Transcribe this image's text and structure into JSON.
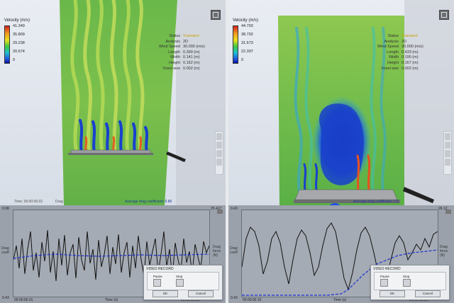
{
  "left": {
    "legend": {
      "title": "Velocity (m/s)",
      "values": [
        "41.349",
        "35.809",
        "29.238",
        "20.674",
        "0"
      ]
    },
    "info": [
      {
        "k": "Status",
        "v": "Transient"
      },
      {
        "k": "Analysis",
        "v": "2D"
      },
      {
        "k": "Wind Speed",
        "v": "30.000 (m/s)"
      },
      {
        "k": "Length",
        "v": "0.399 (m)"
      },
      {
        "k": "Width",
        "v": "0.141 (m)"
      },
      {
        "k": "Height",
        "v": "0.162 (m)"
      },
      {
        "k": "Voxel size",
        "v": "0.002 (m)"
      }
    ],
    "time_top": "Time: 00:00:00.02",
    "drag_label": "Drag",
    "avg_drag": "Average drag coefficient: 0.86",
    "plot": {
      "ylabel_left": "Drag coeff",
      "ylabel_right": "Drag force (N)",
      "y_max_left": "0.98",
      "y_min_left": "0.43",
      "y_max_right": "25.417",
      "y_min_right": "0",
      "x_start": "00:00:00.01",
      "x_mid": "Time (s)",
      "x_end": "00:00:00.02"
    },
    "dialog": {
      "title": "VIDEO RECORD",
      "pause": "Pause",
      "stop": "Stop",
      "ok": "OK",
      "cancel": "Cancel"
    }
  },
  "right": {
    "legend": {
      "title": "Velocity (m/s)",
      "values": [
        "44.793",
        "38.792",
        "31.673",
        "22.397",
        "0"
      ]
    },
    "info": [
      {
        "k": "Status",
        "v": "Transient"
      },
      {
        "k": "Analysis",
        "v": "2D"
      },
      {
        "k": "Wind Speed",
        "v": "30.000 (m/s)"
      },
      {
        "k": "Length",
        "v": "0.433 (m)"
      },
      {
        "k": "Width",
        "v": "0.195 (m)"
      },
      {
        "k": "Height",
        "v": "0.167 (m)"
      },
      {
        "k": "Voxel size",
        "v": "0.002 (m)"
      }
    ],
    "time_top": "Time: 00:00:00.20",
    "avg_drag": "Average drag coefficient: 1.5",
    "plot": {
      "ylabel_left": "Drag coeff",
      "ylabel_right": "Drag force (N)",
      "y_max_left": "0.43",
      "y_min_left": "0.43",
      "y_max_right": "26.12",
      "y_min_right": "0",
      "x_start": "00:00:00.10",
      "x_mid": "Time (s)",
      "x_end": "00:00:00.20"
    },
    "dialog": {
      "title": "VIDEO RECORD",
      "pause": "Pause",
      "stop": "Stop",
      "ok": "OK",
      "cancel": "Cancel"
    }
  }
}
